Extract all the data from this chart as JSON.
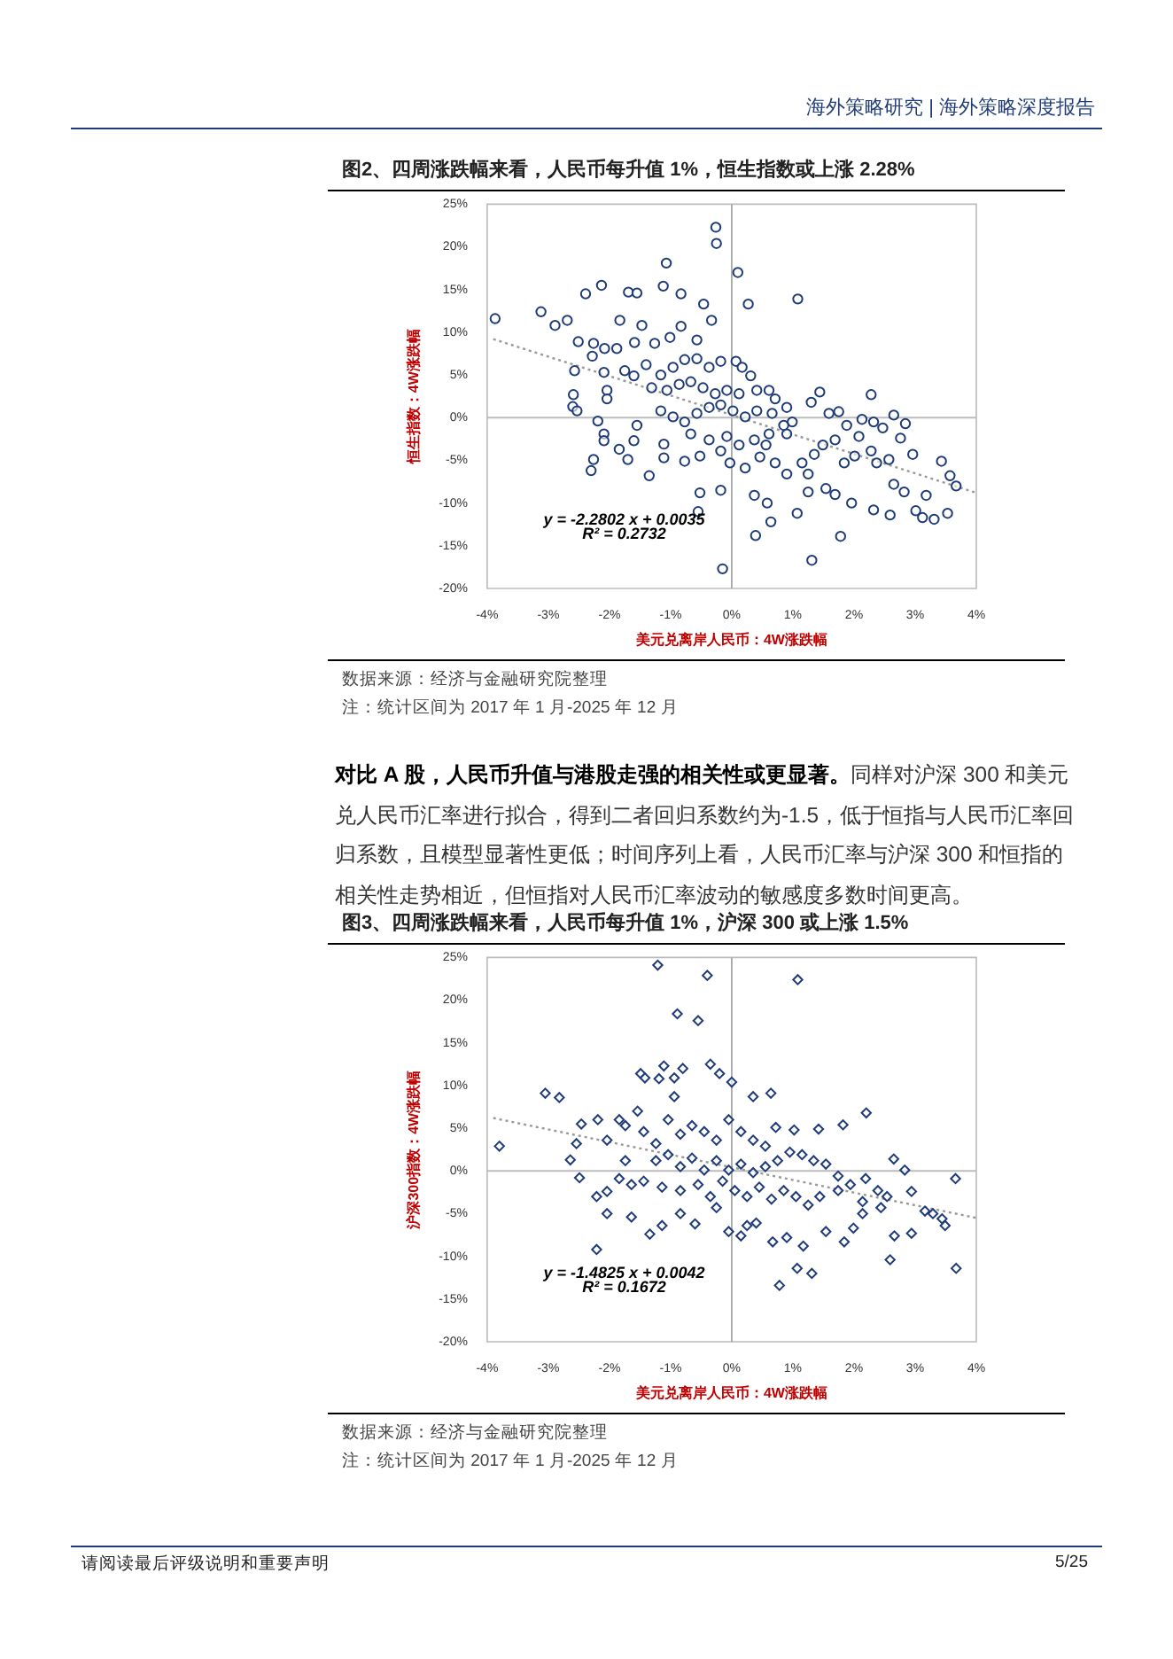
{
  "chart_data": [
    {
      "type": "scatter",
      "title": "图2、四周涨跌幅来看，人民币每升值 1%，恒生指数或上涨 2.28%",
      "xlabel": "美元兑离岸人民币：4W涨跌幅",
      "ylabel": "恒生指数：4W涨跌幅",
      "marker": "circle",
      "legend": false,
      "ref_lines": [
        {
          "axis": "x",
          "value": 0,
          "color": "#a6a6a6"
        },
        {
          "axis": "y",
          "value": 0,
          "color": "#bcbcbc"
        }
      ],
      "xlim": [
        -4,
        4
      ],
      "xticks": [
        {
          "value": -4,
          "label": "-4%"
        },
        {
          "value": -3,
          "label": "-3%"
        },
        {
          "value": -2,
          "label": "-2%"
        },
        {
          "value": -1,
          "label": "-1%"
        },
        {
          "value": 0,
          "label": "0%"
        },
        {
          "value": 1,
          "label": "1%"
        },
        {
          "value": 2,
          "label": "2%"
        },
        {
          "value": 3,
          "label": "3%"
        },
        {
          "value": 4,
          "label": "4%"
        }
      ],
      "ylim": [
        -20,
        25
      ],
      "yticks": [
        {
          "value": -20,
          "label": "-20%"
        },
        {
          "value": -15,
          "label": "-15%"
        },
        {
          "value": -10,
          "label": "-10%"
        },
        {
          "value": -5,
          "label": "-5%"
        },
        {
          "value": 0,
          "label": "0%"
        },
        {
          "value": 5,
          "label": "5%"
        },
        {
          "value": 10,
          "label": "10%"
        },
        {
          "value": 15,
          "label": "15%"
        },
        {
          "value": 20,
          "label": "20%"
        },
        {
          "value": 25,
          "label": "25%"
        }
      ],
      "series": [
        {
          "type": "scatter",
          "color": "#1f3c78",
          "x": [
            -3.87,
            -3.12,
            -2.89,
            -2.69,
            -2.39,
            -2.13,
            -1.69,
            -1.55,
            -1.07,
            -1.12,
            -0.83,
            -0.46,
            -0.26,
            -0.25,
            0.1,
            0.27,
            1.08,
            -0.33,
            -1.83,
            -1.47,
            -0.83,
            -2.51,
            -2.26,
            -2.08,
            -1.88,
            -1.59,
            -1.26,
            -1.01,
            -0.57,
            -2.57,
            -2.28,
            -2.09,
            -2.59,
            -2.6,
            -2.53,
            -2.04,
            -2.04,
            -2.19,
            -2.09,
            -2.09,
            -2.26,
            -2.3,
            -1.84,
            -1.7,
            -1.55,
            -1.6,
            -1.35,
            -1.11,
            -1.11,
            -0.77,
            -0.52,
            -1.75,
            -1.6,
            -1.4,
            -1.16,
            -0.96,
            -0.77,
            -0.57,
            -0.37,
            -0.18,
            0.07,
            0.17,
            0.31,
            -1.31,
            -1.06,
            -0.86,
            -0.67,
            -0.47,
            -0.27,
            -0.08,
            0.12,
            0.41,
            0.61,
            0.71,
            -1.16,
            -0.96,
            -0.77,
            -0.57,
            -0.37,
            -0.18,
            0.02,
            0.22,
            0.41,
            0.66,
            0.9,
            -0.67,
            -0.37,
            -0.08,
            0.12,
            0.37,
            0.61,
            0.85,
            0.99,
            -0.18,
            -0.03,
            0.22,
            0.46,
            0.71,
            0.9,
            -0.18,
            -0.52,
            -0.55,
            0.37,
            0.58,
            0.64,
            0.39,
            -0.15,
            1.31,
            1.07,
            1.25,
            1.15,
            1.25,
            1.35,
            1.49,
            1.69,
            1.54,
            1.69,
            1.96,
            1.78,
            1.84,
            2.01,
            2.28,
            2.37,
            2.32,
            2.57,
            2.65,
            2.59,
            2.82,
            2.96,
            3.01,
            3.18,
            3.12,
            3.31,
            3.43,
            3.53,
            3.57,
            3.67,
            1.44,
            1.3,
            1.59,
            1.75,
            2.28,
            2.13,
            2.32,
            2.65,
            2.84,
            2.76,
            2.47,
            1.88,
            2.08,
            0.9,
            0.56
          ],
          "values": [
            11.6,
            12.4,
            10.8,
            11.4,
            14.5,
            15.5,
            14.7,
            14.6,
            18.1,
            15.4,
            14.5,
            13.3,
            22.3,
            20.4,
            17.0,
            13.3,
            13.9,
            11.4,
            11.4,
            10.8,
            10.7,
            8.9,
            8.7,
            8.1,
            8.1,
            8.8,
            8.7,
            9.4,
            9.1,
            5.5,
            7.2,
            5.3,
            2.7,
            1.3,
            0.8,
            3.2,
            2.2,
            -0.4,
            -1.9,
            -2.7,
            -4.9,
            -6.2,
            -3.7,
            -4.9,
            -0.9,
            -2.7,
            -6.8,
            -3.1,
            -4.7,
            -5.1,
            -4.5,
            5.5,
            4.9,
            6.2,
            5.0,
            5.9,
            6.8,
            6.9,
            5.9,
            6.6,
            6.6,
            5.9,
            4.9,
            3.5,
            3.2,
            3.9,
            4.2,
            3.5,
            2.8,
            3.2,
            2.8,
            3.2,
            3.2,
            2.2,
            0.8,
            0.1,
            -0.5,
            0.5,
            1.2,
            1.5,
            0.8,
            0.1,
            0.8,
            0.5,
            1.2,
            -1.9,
            -2.6,
            -2.2,
            -3.2,
            -2.6,
            -1.9,
            -0.9,
            -0.5,
            -3.9,
            -5.3,
            -5.9,
            -4.6,
            -5.3,
            -6.6,
            -8.5,
            -8.8,
            -11.0,
            -9.1,
            -10.0,
            -12.2,
            -13.8,
            -17.7,
            -16.7,
            -11.2,
            -8.7,
            -5.3,
            -6.6,
            -4.3,
            -3.2,
            -2.6,
            -8.3,
            -9.0,
            -10.0,
            -13.9,
            -5.3,
            -4.5,
            -3.9,
            -5.3,
            -10.8,
            -4.9,
            -7.8,
            -11.4,
            -8.7,
            -4.3,
            -10.9,
            -9.1,
            -11.7,
            -11.9,
            -5.1,
            -11.2,
            -6.8,
            -8.0,
            3.0,
            1.8,
            0.5,
            0.7,
            2.7,
            -0.2,
            -0.5,
            0.3,
            -0.7,
            -2.4,
            -1.2,
            -0.9,
            -2.2,
            -1.9,
            -3.2
          ]
        },
        {
          "type": "line",
          "color": "#999999",
          "line_style": "dotted",
          "marker": "none",
          "x": [
            -3.9,
            4
          ],
          "values": [
            9.2,
            -8.8
          ]
        }
      ],
      "annotations": [
        "海外策略研究 | 海外策略深度报告",
        "数据来源：经济与金融研究院整理",
        "注：统计区间为 2017 年 1 月-2025 年 12 月",
        "对比 A 股，人民币升值与港股走强的相关性或更显著。",
        "同样对沪深 300 和美元兑人民币汇率进行拟合，得到二者回归系数约为-1.5，低于恒指与人民币汇率回归系数，且模型显著性更低；时间序列上看，人民币汇率与沪深 300 和恒指的相关性走势相近，但恒指对人民币汇率波动的敏感度多数时间更高。",
        "y = -2.2802 x + 0.0035",
        "R² = 0.2732"
      ]
    },
    {
      "type": "scatter",
      "title": "图3、四周涨跌幅来看，人民币每升值 1%，沪深 300 或上涨 1.5%",
      "xlabel": "美元兑离岸人民币：4W涨跌幅",
      "ylabel": "沪深300指数：4W涨跌幅",
      "marker": "diamond",
      "legend": false,
      "ref_lines": [
        {
          "axis": "x",
          "value": 0,
          "color": "#a6a6a6"
        },
        {
          "axis": "y",
          "value": 0,
          "color": "#bcbcbc"
        }
      ],
      "xlim": [
        -4,
        4
      ],
      "xticks": [
        {
          "value": -4,
          "label": "-4%"
        },
        {
          "value": -3,
          "label": "-3%"
        },
        {
          "value": -2,
          "label": "-2%"
        },
        {
          "value": -1,
          "label": "-1%"
        },
        {
          "value": 0,
          "label": "0%"
        },
        {
          "value": 1,
          "label": "1%"
        },
        {
          "value": 2,
          "label": "2%"
        },
        {
          "value": 3,
          "label": "3%"
        },
        {
          "value": 4,
          "label": "4%"
        }
      ],
      "ylim": [
        -20,
        25
      ],
      "yticks": [
        {
          "value": -20,
          "label": "-20%"
        },
        {
          "value": -15,
          "label": "-15%"
        },
        {
          "value": -10,
          "label": "-10%"
        },
        {
          "value": -5,
          "label": "-5%"
        },
        {
          "value": 0,
          "label": "0%"
        },
        {
          "value": 5,
          "label": "5%"
        },
        {
          "value": 10,
          "label": "10%"
        },
        {
          "value": 15,
          "label": "15%"
        },
        {
          "value": 20,
          "label": "20%"
        },
        {
          "value": 25,
          "label": "25%"
        }
      ],
      "series": [
        {
          "type": "scatter",
          "color": "#1f3c78",
          "x": [
            -3.8,
            -3.05,
            -2.82,
            -2.64,
            -2.49,
            -2.46,
            -2.54,
            -2.21,
            -2.21,
            -2.19,
            -2.04,
            -2.04,
            -1.84,
            -1.74,
            -1.64,
            -1.54,
            -1.49,
            -1.42,
            -1.21,
            -1.11,
            -1.19,
            -0.94,
            -0.89,
            -0.8,
            -0.94,
            -0.55,
            -0.4,
            -0.35,
            -0.2,
            0.0,
            0.35,
            0.64,
            1.08,
            0.72,
            1.02,
            1.42,
            1.82,
            2.2,
            -1.34,
            -1.14,
            -0.84,
            -0.6,
            -0.25,
            -0.05,
            0.15,
            0.25,
            0.4,
            0.67,
            0.9,
            1.07,
            1.17,
            1.31,
            0.78,
            1.54,
            1.84,
            1.99,
            2.14,
            2.59,
            2.66,
            2.94,
            2.65,
            2.83,
            2.94,
            3.16,
            3.29,
            3.49,
            3.66,
            3.67,
            3.44,
            -1.74,
            -1.44,
            -1.24,
            -1.04,
            -0.84,
            -0.65,
            -0.45,
            -0.25,
            -0.05,
            0.15,
            0.35,
            0.55,
            -1.24,
            -1.04,
            -0.84,
            -0.65,
            -0.45,
            -0.25,
            -0.05,
            0.15,
            0.35,
            0.55,
            0.75,
            0.95,
            1.15,
            1.34,
            1.54,
            -1.44,
            -1.14,
            -0.84,
            -0.55,
            -0.35,
            -0.15,
            0.05,
            0.25,
            0.45,
            0.65,
            0.85,
            1.05,
            1.25,
            1.44,
            1.74,
            1.94,
            2.19,
            2.39,
            2.54,
            -2.04,
            -1.84,
            -1.64,
            1.74,
            2.14,
            2.44
          ],
          "values": [
            2.9,
            9.1,
            8.6,
            1.3,
            -0.8,
            5.5,
            3.2,
            -9.2,
            -3.0,
            6.0,
            -2.4,
            3.6,
            6.0,
            1.2,
            -5.4,
            7.0,
            11.4,
            10.9,
            24.1,
            12.3,
            10.8,
            10.9,
            18.4,
            12.0,
            8.7,
            17.6,
            22.9,
            12.5,
            11.4,
            10.4,
            8.7,
            9.1,
            22.4,
            5.1,
            4.8,
            4.9,
            5.4,
            6.8,
            -7.4,
            -6.4,
            -5.0,
            -6.2,
            -4.3,
            -7.1,
            -7.6,
            -6.4,
            -6.1,
            -8.3,
            -7.8,
            -11.4,
            -8.8,
            -12.0,
            -13.4,
            -7.1,
            -8.3,
            -6.7,
            -5.0,
            -10.4,
            -7.6,
            -7.3,
            1.4,
            0.1,
            -2.4,
            -4.7,
            -5.0,
            -6.4,
            -0.9,
            -11.4,
            -5.6,
            5.3,
            4.6,
            3.2,
            6.0,
            4.3,
            5.3,
            4.6,
            3.6,
            6.0,
            4.6,
            3.6,
            2.9,
            1.2,
            1.9,
            0.5,
            1.5,
            0.1,
            1.2,
            0.1,
            0.8,
            -0.2,
            0.5,
            1.2,
            2.2,
            1.9,
            1.2,
            0.8,
            -1.2,
            -1.9,
            -2.3,
            -1.6,
            -3.0,
            -1.2,
            -2.3,
            -3.0,
            -1.9,
            -3.3,
            -2.3,
            -3.0,
            -4.0,
            -3.0,
            -2.3,
            -1.6,
            -0.9,
            -2.3,
            -3.0,
            -5.0,
            -0.9,
            -1.6,
            -0.6,
            -3.6,
            -4.3
          ]
        },
        {
          "type": "line",
          "color": "#999999",
          "line_style": "dotted",
          "marker": "none",
          "x": [
            -3.9,
            4
          ],
          "values": [
            6.2,
            -5.5
          ]
        }
      ],
      "annotations": [
        "数据来源：经济与金融研究院整理",
        "注：统计区间为 2017 年 1 月-2025 年 12 月",
        "请阅读最后评级说明和重要声明",
        "5/25",
        "y = -1.4825 x + 0.0042",
        "R² = 0.1672"
      ]
    }
  ]
}
